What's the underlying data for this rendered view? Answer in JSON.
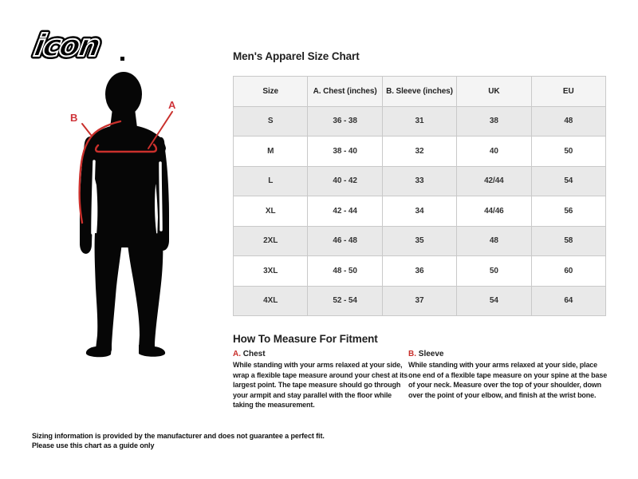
{
  "brand": {
    "logo_text": "icon",
    "logo_mark": "."
  },
  "header": {
    "title": "Men's Apparel Size Chart"
  },
  "figure": {
    "label_a": "A",
    "label_b": "B"
  },
  "table": {
    "columns": [
      "Size",
      "A. Chest (inches)",
      "B. Sleeve (inches)",
      "UK",
      "EU"
    ],
    "rows": [
      [
        "S",
        "36 - 38",
        "31",
        "38",
        "48"
      ],
      [
        "M",
        "38 - 40",
        "32",
        "40",
        "50"
      ],
      [
        "L",
        "40 - 42",
        "33",
        "42/44",
        "54"
      ],
      [
        "XL",
        "42 - 44",
        "34",
        "44/46",
        "56"
      ],
      [
        "2XL",
        "46 - 48",
        "35",
        "48",
        "58"
      ],
      [
        "3XL",
        "48 - 50",
        "36",
        "50",
        "60"
      ],
      [
        "4XL",
        "52 - 54",
        "37",
        "54",
        "64"
      ]
    ]
  },
  "fitment": {
    "title": "How To Measure For Fitment",
    "chest": {
      "label_prefix": "A.",
      "label": "Chest",
      "text": "While standing with your arms relaxed at your side, wrap a flexible tape measure around your chest at its largest point. The tape measure should go through your armpit and stay parallel with the floor while taking the measurement."
    },
    "sleeve": {
      "label_prefix": "B.",
      "label": "Sleeve",
      "text": "While standing with your arms relaxed at your side, place one end of a flexible tape measure on your spine at the base of your neck. Measure over the top of your shoulder, down over the point of your elbow, and finish at the wrist bone."
    }
  },
  "disclaimer": {
    "line1": "Sizing information is provided by the manufacturer and does not guarantee a perfect fit.",
    "line2": "Please use this chart as a guide only"
  },
  "colors": {
    "accent_red": "#c9302c",
    "silhouette_black": "#060606",
    "table_header_bg": "#f4f4f4",
    "table_row_alt_bg": "#e9e9e9",
    "table_border": "#c9c9c9"
  }
}
